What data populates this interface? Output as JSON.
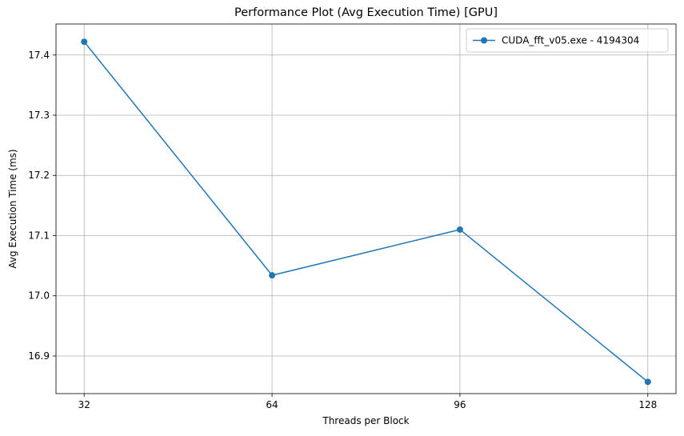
{
  "chart_data": {
    "type": "line",
    "title": "Performance Plot (Avg Execution Time) [GPU]",
    "xlabel": "Threads per Block",
    "ylabel": "Avg Execution Time (ms)",
    "x": [
      32,
      64,
      96,
      128
    ],
    "x_tick_labels": [
      "32",
      "64",
      "96",
      "128"
    ],
    "y_ticks": [
      16.9,
      17.0,
      17.1,
      17.2,
      17.3,
      17.4
    ],
    "y_tick_labels": [
      "16.9",
      "17.0",
      "17.1",
      "17.2",
      "17.3",
      "17.4"
    ],
    "xlim": [
      27.2,
      132.8
    ],
    "ylim": [
      16.8375,
      17.4515
    ],
    "series": [
      {
        "name": "CUDA_fft_v05.exe - 4194304",
        "values": [
          17.422,
          17.034,
          17.11,
          16.857
        ],
        "color": "#1f77b4",
        "marker": "circle"
      }
    ],
    "grid": true,
    "legend_position": "top-right"
  }
}
